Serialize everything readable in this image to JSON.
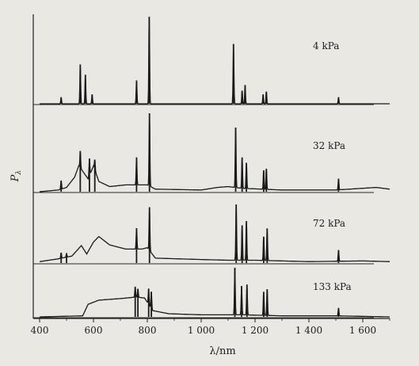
{
  "chart_data": {
    "type": "line",
    "ylabel_main": "P",
    "ylabel_sub": "λ",
    "xlabel": "λ/nm",
    "xlim": [
      400,
      1700
    ],
    "xticks": [
      {
        "value": 400,
        "label": "400"
      },
      {
        "value": 600,
        "label": "600"
      },
      {
        "value": 800,
        "label": "800"
      },
      {
        "value": 1000,
        "label": "1 000"
      },
      {
        "value": 1200,
        "label": "1 200"
      },
      {
        "value": 1400,
        "label": "1 400"
      },
      {
        "value": 1600,
        "label": "1 600"
      }
    ],
    "grid": false,
    "panels": [
      {
        "label": "4 kPa",
        "ymax": 1.0,
        "continuum": [
          [
            400,
            0
          ],
          [
            1700,
            0
          ]
        ],
        "peaks": [
          [
            480,
            0.07
          ],
          [
            551,
            0.42
          ],
          [
            570,
            0.31
          ],
          [
            595,
            0.1
          ],
          [
            760,
            0.25
          ],
          [
            807,
            0.93
          ],
          [
            1120,
            0.64
          ],
          [
            1152,
            0.14
          ],
          [
            1163,
            0.2
          ],
          [
            1230,
            0.1
          ],
          [
            1242,
            0.13
          ],
          [
            1510,
            0.07
          ]
        ]
      },
      {
        "label": "32 kPa",
        "ymax": 1.0,
        "continuum": [
          [
            400,
            0
          ],
          [
            470,
            0.02
          ],
          [
            500,
            0.05
          ],
          [
            530,
            0.17
          ],
          [
            545,
            0.3
          ],
          [
            560,
            0.24
          ],
          [
            580,
            0.15
          ],
          [
            600,
            0.3
          ],
          [
            620,
            0.12
          ],
          [
            660,
            0.06
          ],
          [
            720,
            0.08
          ],
          [
            800,
            0.08
          ],
          [
            830,
            0.03
          ],
          [
            1000,
            0.02
          ],
          [
            1060,
            0.05
          ],
          [
            1100,
            0.06
          ],
          [
            1150,
            0.04
          ],
          [
            1300,
            0.02
          ],
          [
            1500,
            0.02
          ],
          [
            1600,
            0.04
          ],
          [
            1650,
            0.05
          ],
          [
            1700,
            0.03
          ]
        ],
        "peaks": [
          [
            480,
            0.1
          ],
          [
            551,
            0.2
          ],
          [
            585,
            0.2
          ],
          [
            605,
            0.12
          ],
          [
            760,
            0.32
          ],
          [
            808,
            0.85
          ],
          [
            1128,
            0.7
          ],
          [
            1152,
            0.36
          ],
          [
            1168,
            0.3
          ],
          [
            1232,
            0.22
          ],
          [
            1242,
            0.24
          ],
          [
            1510,
            0.13
          ]
        ]
      },
      {
        "label": "72 kPa",
        "ymax": 1.0,
        "continuum": [
          [
            400,
            0.02
          ],
          [
            470,
            0.06
          ],
          [
            520,
            0.1
          ],
          [
            555,
            0.25
          ],
          [
            575,
            0.13
          ],
          [
            600,
            0.3
          ],
          [
            620,
            0.38
          ],
          [
            660,
            0.26
          ],
          [
            720,
            0.2
          ],
          [
            780,
            0.2
          ],
          [
            800,
            0.22
          ],
          [
            830,
            0.07
          ],
          [
            1000,
            0.05
          ],
          [
            1100,
            0.04
          ],
          [
            1200,
            0.04
          ],
          [
            1400,
            0.02
          ],
          [
            1600,
            0.03
          ],
          [
            1700,
            0.02
          ]
        ],
        "peaks": [
          [
            480,
            0.08
          ],
          [
            500,
            0.05
          ],
          [
            760,
            0.3
          ],
          [
            808,
            0.62
          ],
          [
            1130,
            0.8
          ],
          [
            1152,
            0.5
          ],
          [
            1168,
            0.56
          ],
          [
            1232,
            0.34
          ],
          [
            1245,
            0.46
          ],
          [
            1510,
            0.16
          ]
        ]
      },
      {
        "label": "133 kPa",
        "ymax": 1.0,
        "continuum": [
          [
            400,
            0
          ],
          [
            560,
            0.02
          ],
          [
            580,
            0.24
          ],
          [
            620,
            0.32
          ],
          [
            700,
            0.35
          ],
          [
            760,
            0.38
          ],
          [
            790,
            0.36
          ],
          [
            820,
            0.12
          ],
          [
            880,
            0.06
          ],
          [
            1000,
            0.04
          ],
          [
            1150,
            0.04
          ],
          [
            1300,
            0.02
          ],
          [
            1500,
            0.02
          ],
          [
            1700,
            0
          ]
        ],
        "peaks": [
          [
            755,
            0.2
          ],
          [
            765,
            0.16
          ],
          [
            805,
            0.3
          ],
          [
            815,
            0.32
          ],
          [
            1125,
            0.9
          ],
          [
            1150,
            0.55
          ],
          [
            1170,
            0.58
          ],
          [
            1232,
            0.45
          ],
          [
            1245,
            0.5
          ],
          [
            1510,
            0.15
          ]
        ]
      }
    ]
  }
}
